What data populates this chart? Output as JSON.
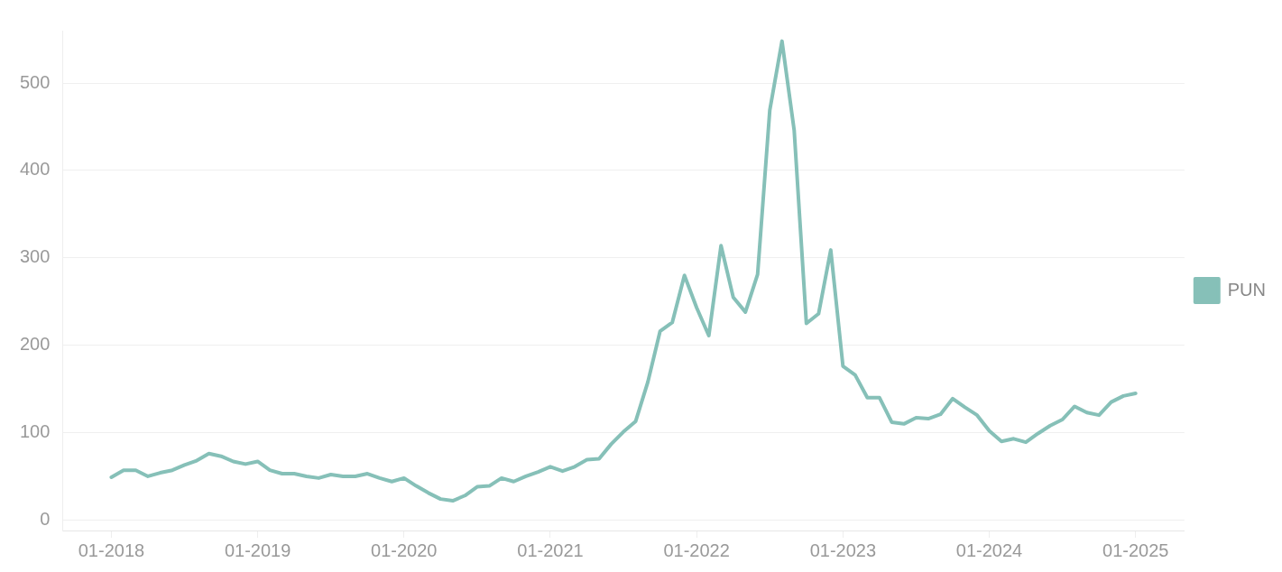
{
  "chart_data": {
    "type": "line",
    "x": [
      "2018-01",
      "2018-02",
      "2018-03",
      "2018-04",
      "2018-05",
      "2018-06",
      "2018-07",
      "2018-08",
      "2018-09",
      "2018-10",
      "2018-11",
      "2018-12",
      "2019-01",
      "2019-02",
      "2019-03",
      "2019-04",
      "2019-05",
      "2019-06",
      "2019-07",
      "2019-08",
      "2019-09",
      "2019-10",
      "2019-11",
      "2019-12",
      "2020-01",
      "2020-02",
      "2020-03",
      "2020-04",
      "2020-05",
      "2020-06",
      "2020-07",
      "2020-08",
      "2020-09",
      "2020-10",
      "2020-11",
      "2020-12",
      "2021-01",
      "2021-02",
      "2021-03",
      "2021-04",
      "2021-05",
      "2021-06",
      "2021-07",
      "2021-08",
      "2021-09",
      "2021-10",
      "2021-11",
      "2021-12",
      "2022-01",
      "2022-02",
      "2022-03",
      "2022-04",
      "2022-05",
      "2022-06",
      "2022-07",
      "2022-08",
      "2022-09",
      "2022-10",
      "2022-11",
      "2022-12",
      "2023-01",
      "2023-02",
      "2023-03",
      "2023-04",
      "2023-05",
      "2023-06",
      "2023-07",
      "2023-08",
      "2023-09",
      "2023-10",
      "2023-11",
      "2023-12",
      "2024-01",
      "2024-02",
      "2024-03",
      "2024-04",
      "2024-05",
      "2024-06",
      "2024-07",
      "2024-08",
      "2024-09",
      "2024-10",
      "2024-11",
      "2024-12",
      "2025-01"
    ],
    "series": [
      {
        "name": "PUN",
        "color": "#86c0b8",
        "values": [
          49,
          57,
          57,
          50,
          54,
          57,
          63,
          68,
          76,
          73,
          67,
          64,
          67,
          57,
          53,
          53,
          50,
          48,
          52,
          50,
          50,
          53,
          48,
          44,
          48,
          39,
          31,
          24,
          22,
          28,
          38,
          39,
          48,
          44,
          50,
          55,
          61,
          56,
          61,
          69,
          70,
          87,
          101,
          113,
          158,
          216,
          226,
          280,
          243,
          211,
          314,
          255,
          238,
          281,
          469,
          548,
          446,
          225,
          236,
          309,
          176,
          166,
          140,
          140,
          112,
          110,
          117,
          116,
          121,
          139,
          129,
          120,
          102,
          90,
          93,
          89,
          99,
          108,
          115,
          130,
          123,
          120,
          135,
          142,
          145
        ]
      }
    ],
    "xlim": [
      "2017-09",
      "2025-05"
    ],
    "xticks": [
      {
        "value": "2018-01",
        "label": "01-2018"
      },
      {
        "value": "2019-01",
        "label": "01-2019"
      },
      {
        "value": "2020-01",
        "label": "01-2020"
      },
      {
        "value": "2021-01",
        "label": "01-2021"
      },
      {
        "value": "2022-01",
        "label": "01-2022"
      },
      {
        "value": "2023-01",
        "label": "01-2023"
      },
      {
        "value": "2024-01",
        "label": "01-2024"
      },
      {
        "value": "2025-01",
        "label": "01-2025"
      }
    ],
    "ylim": [
      -12,
      560
    ],
    "yticks": [
      0,
      100,
      200,
      300,
      400,
      500
    ],
    "grid": "y",
    "legend": "right",
    "marker": "none",
    "line_style": "solid"
  }
}
